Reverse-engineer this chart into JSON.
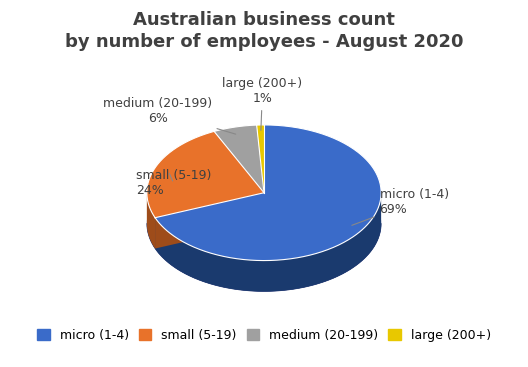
{
  "title": "Australian business count\nby number of employees - August 2020",
  "labels": [
    "micro (1-4)",
    "small (5-19)",
    "medium (20-199)",
    "large (200+)"
  ],
  "values": [
    69,
    24,
    6,
    1
  ],
  "colors": [
    "#3A6BC9",
    "#E8722A",
    "#A0A0A0",
    "#E8C800"
  ],
  "dark_colors": [
    "#1a3a6e",
    "#9e4c1a",
    "#606060",
    "#9e8800"
  ],
  "legend_labels": [
    "micro (1-4)",
    "small (5-19)",
    "medium (20-199)",
    "large (200+)"
  ],
  "title_fontsize": 13,
  "label_fontsize": 9,
  "legend_fontsize": 9,
  "background_color": "#ffffff"
}
